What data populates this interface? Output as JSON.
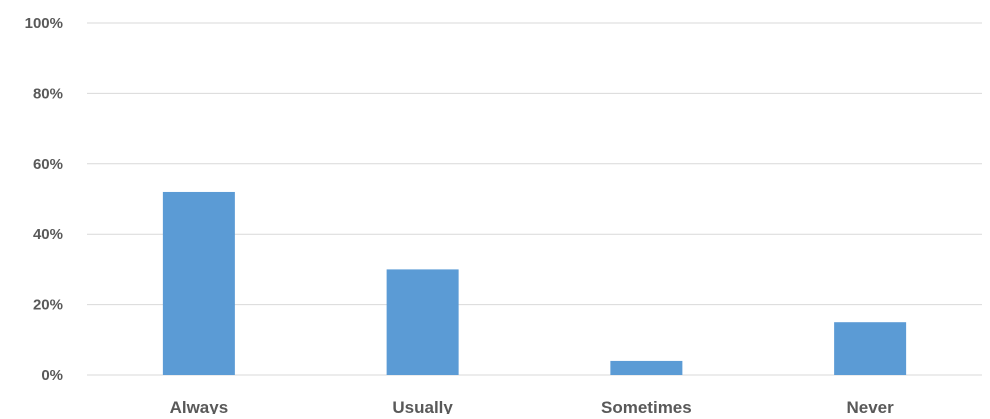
{
  "chart_data": {
    "type": "bar",
    "categories": [
      "Always",
      "Usually",
      "Sometimes",
      "Never"
    ],
    "values": [
      0.52,
      0.3,
      0.04,
      0.15
    ],
    "ylim": [
      0,
      1
    ],
    "yticks": [
      0,
      0.2,
      0.4,
      0.6,
      0.8,
      1.0
    ],
    "ytick_labels": [
      "0%",
      "20%",
      "40%",
      "60%",
      "80%",
      "100%"
    ],
    "grid": true,
    "legend": "none",
    "bar_color": "#5B9BD5",
    "grid_color": "#D9D9D9",
    "text_color": "#595959"
  }
}
